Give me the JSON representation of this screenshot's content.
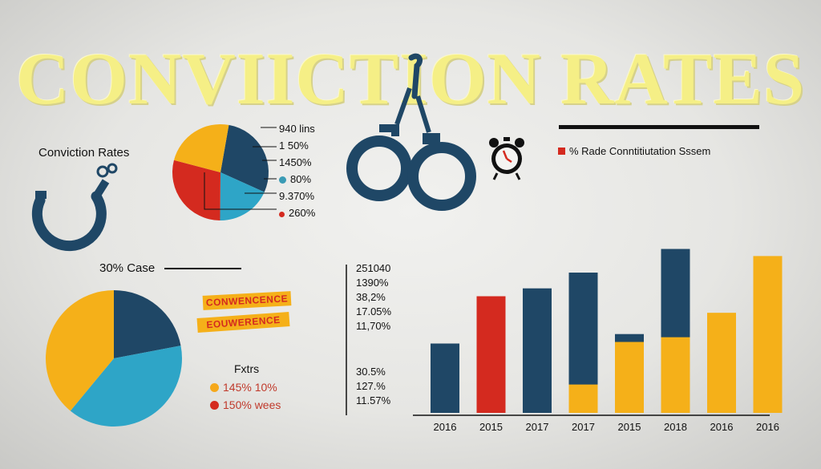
{
  "title": "CONVIICTION RATES",
  "header_label": "Conviction Rates",
  "small_pie": {
    "labels": [
      "940 lins",
      "1 50%",
      "1450%",
      "80%",
      "9.370%",
      "260%"
    ],
    "dot_colors": [
      "",
      "",
      "",
      "#3a9bb5",
      "",
      "#d42a1f"
    ]
  },
  "legend_top": {
    "label": "% Rade Conntitiutation Sssem",
    "color": "#d42a1f"
  },
  "case_label": "30% Case",
  "tape": {
    "line1": "CONWENCENCE",
    "line2": "EOUWERENCE"
  },
  "factors": {
    "title": "Fxtrs",
    "items": [
      {
        "label": "145% 10%",
        "color": "#f5a81b",
        "text_color": "#c0392b"
      },
      {
        "label": "150% wees",
        "color": "#d42a1f",
        "text_color": "#c0392b"
      }
    ]
  },
  "y_labels_upper": [
    "251040",
    "1390%",
    "38,2%",
    "17.05%",
    "11,70%"
  ],
  "y_labels_lower": [
    "30.5%",
    "127.%",
    "11.57%"
  ],
  "colors": {
    "navy": "#1f4766",
    "red": "#d42a1f",
    "yellow": "#f5b019",
    "teal": "#2ea5c7"
  },
  "chart_data": [
    {
      "type": "pie",
      "slices": [
        {
          "color": "#1f4766",
          "value": 22
        },
        {
          "color": "#2ea5c7",
          "value": 14
        },
        {
          "color": "#d42a1f",
          "value": 22
        },
        {
          "color": "#f5b019",
          "value": 18
        }
      ]
    },
    {
      "type": "pie",
      "slices": [
        {
          "color": "#1f4766",
          "value": 22
        },
        {
          "color": "#2ea5c7",
          "value": 39
        },
        {
          "color": "#f5b019",
          "value": 39
        }
      ]
    },
    {
      "type": "bar",
      "categories": [
        "2016",
        "2015",
        "2017",
        "2017",
        "2015",
        "2018",
        "2016",
        "2016"
      ],
      "series": [
        {
          "color": "#1f4766",
          "values": [
            88,
            0,
            158,
            178,
            100,
            208,
            0,
            0
          ]
        },
        {
          "color": "#d42a1f",
          "values": [
            0,
            148,
            0,
            0,
            0,
            0,
            0,
            0
          ]
        },
        {
          "color": "#f5b019",
          "values": [
            0,
            0,
            0,
            36,
            90,
            96,
            127,
            199
          ]
        }
      ],
      "stacking": "yellow drawn at base in front of navy",
      "ylim": [
        0,
        295
      ]
    }
  ]
}
